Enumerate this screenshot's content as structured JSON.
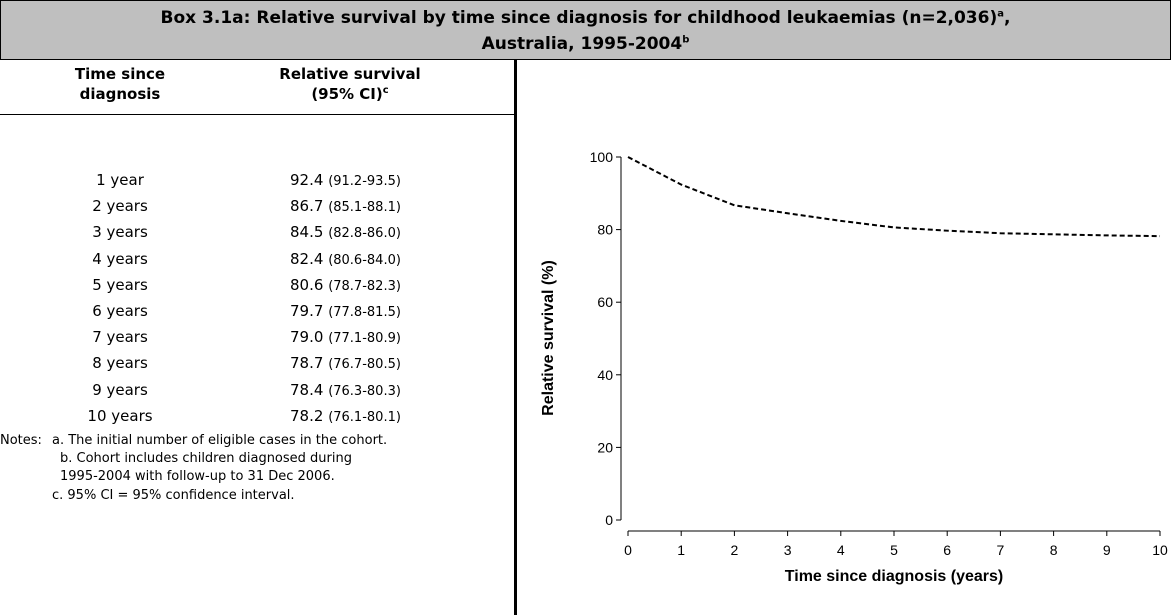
{
  "header": {
    "title": [
      "Box 3.1a: Relative survival by time since diagnosis for childhood leukaemias (n=2,036)",
      "a",
      ",",
      "Australia, 1995-2004",
      "b"
    ]
  },
  "table": {
    "columns": [
      [
        "Time since",
        "diagnosis"
      ],
      [
        "Relative survival",
        "(95% CI)",
        "c"
      ]
    ],
    "rows": [
      [
        "1 year",
        "92.4",
        "(91.2-93.5)"
      ],
      [
        "2 years",
        "86.7",
        "(85.1-88.1)"
      ],
      [
        "3 years",
        "84.5",
        "(82.8-86.0)"
      ],
      [
        "4 years",
        "82.4",
        "(80.6-84.0)"
      ],
      [
        "5 years",
        "80.6",
        "(78.7-82.3)"
      ],
      [
        "6 years",
        "79.7",
        "(77.8-81.5)"
      ],
      [
        "7 years",
        "79.0",
        "(77.1-80.9)"
      ],
      [
        "8 years",
        "78.7",
        "(76.7-80.5)"
      ],
      [
        "9 years",
        "78.4",
        "(76.3-80.3)"
      ],
      [
        "10 years",
        "78.2",
        "(76.1-80.1)"
      ]
    ]
  },
  "notes": {
    "label": "Notes:",
    "items": [
      "a. The initial number of eligible cases in the cohort.",
      "b. Cohort includes children diagnosed during",
      "1995-2004 with follow-up to 31 Dec 2006.",
      "c. 95% CI = 95% confidence interval."
    ]
  },
  "chart_data": {
    "type": "line",
    "xlabel": "Time since diagnosis (years)",
    "ylabel": "Relative survival (%)",
    "x": [
      0,
      1,
      2,
      3,
      4,
      5,
      6,
      7,
      8,
      9,
      10
    ],
    "values": [
      100,
      92.4,
      86.7,
      84.5,
      82.4,
      80.6,
      79.7,
      79.0,
      78.7,
      78.4,
      78.2
    ],
    "color": "#000000",
    "line_style": "dashed",
    "xlim": [
      0,
      10
    ],
    "ylim": [
      0,
      100
    ],
    "xticks": [
      0,
      1,
      2,
      3,
      4,
      5,
      6,
      7,
      8,
      9,
      10
    ],
    "yticks": [
      0,
      20,
      40,
      60,
      80,
      100
    ]
  }
}
